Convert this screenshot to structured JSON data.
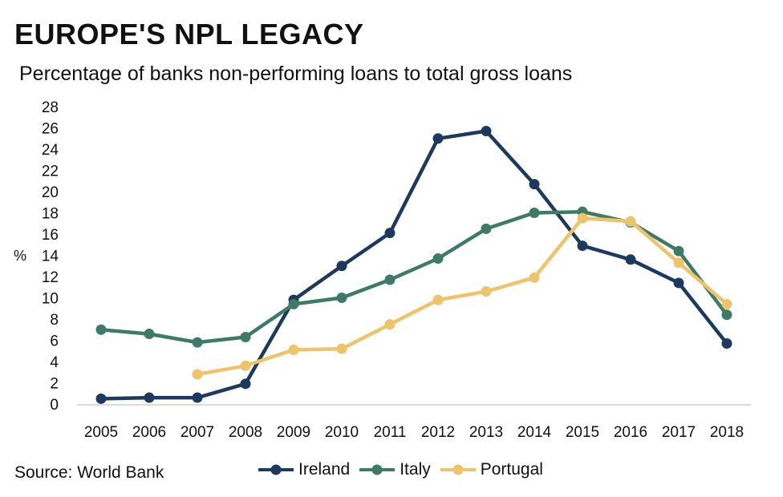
{
  "title": "EUROPE'S NPL LEGACY",
  "subtitle": "Percentage of banks non-performing loans to total gross loans",
  "source": "Source: World Bank",
  "chart_data": {
    "type": "line",
    "title": "EUROPE'S NPL LEGACY",
    "subtitle": "Percentage of banks non-performing loans to total gross loans",
    "ylabel": "%",
    "xlabel": "",
    "ylim": [
      0,
      28
    ],
    "yticks": [
      0,
      2,
      4,
      6,
      8,
      10,
      12,
      14,
      16,
      18,
      20,
      22,
      24,
      26,
      28
    ],
    "x": [
      "2005",
      "2006",
      "2007",
      "2008",
      "2009",
      "2010",
      "2011",
      "2012",
      "2013",
      "2014",
      "2015",
      "2016",
      "2017",
      "2018"
    ],
    "grid": false,
    "legend_position": "bottom",
    "series": [
      {
        "name": "Ireland",
        "color": "#1c3a5e",
        "values": [
          0.5,
          0.6,
          0.6,
          1.9,
          9.8,
          13.0,
          16.1,
          25.0,
          25.7,
          20.7,
          14.9,
          13.6,
          11.4,
          5.7
        ]
      },
      {
        "name": "Italy",
        "color": "#3d7a68",
        "values": [
          7.0,
          6.6,
          5.8,
          6.3,
          9.4,
          10.0,
          11.7,
          13.7,
          16.5,
          18.0,
          18.1,
          17.1,
          14.4,
          8.4
        ]
      },
      {
        "name": "Portugal",
        "color": "#efc36a",
        "values": [
          null,
          null,
          2.8,
          3.6,
          5.1,
          5.2,
          7.5,
          9.8,
          10.6,
          11.9,
          17.5,
          17.2,
          13.3,
          9.4
        ]
      }
    ]
  }
}
